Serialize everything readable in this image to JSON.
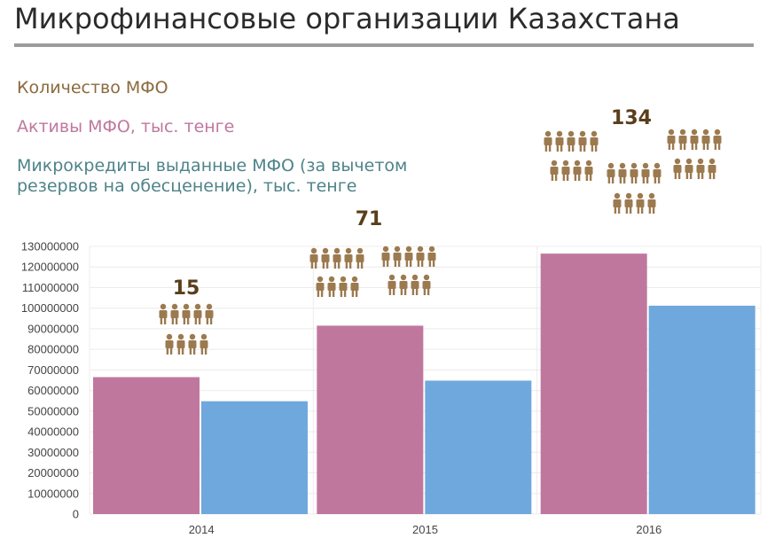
{
  "title": "Микрофинансовые организации Казахстана",
  "colors": {
    "count": "#8B6A3E",
    "assets": "#C0779E",
    "loans": "#4E8389",
    "assets_bar": "#C0779E",
    "loans_bar": "#6FA8DC",
    "people_icon": "#9C7A4F",
    "count_label": "#5A3E1B"
  },
  "legend": {
    "count_label": "Количество МФО",
    "assets_label": "Активы МФО, тыс. тенге",
    "loans_label": "Микрокредиты выданные МФО (за вычетом резервов на обесценение), тыс. тенге"
  },
  "chart_data": {
    "type": "bar",
    "categories": [
      "2014",
      "2015",
      "2016"
    ],
    "series": [
      {
        "name": "Активы МФО, тыс. тенге",
        "values": [
          66500000,
          91500000,
          126500000
        ]
      },
      {
        "name": "Микрокредиты выданные МФО (за вычетом резервов на обесценение), тыс. тенге",
        "values": [
          54800000,
          64800000,
          101200000
        ]
      }
    ],
    "mfo_count": {
      "name": "Количество МФО",
      "values": [
        15,
        71,
        134
      ],
      "icon": "person-icon"
    },
    "ylim": [
      0,
      130000000
    ],
    "yticks": [
      0,
      10000000,
      20000000,
      30000000,
      40000000,
      50000000,
      60000000,
      70000000,
      80000000,
      90000000,
      100000000,
      110000000,
      120000000,
      130000000
    ],
    "grid": true,
    "xlabel": "",
    "ylabel": ""
  }
}
